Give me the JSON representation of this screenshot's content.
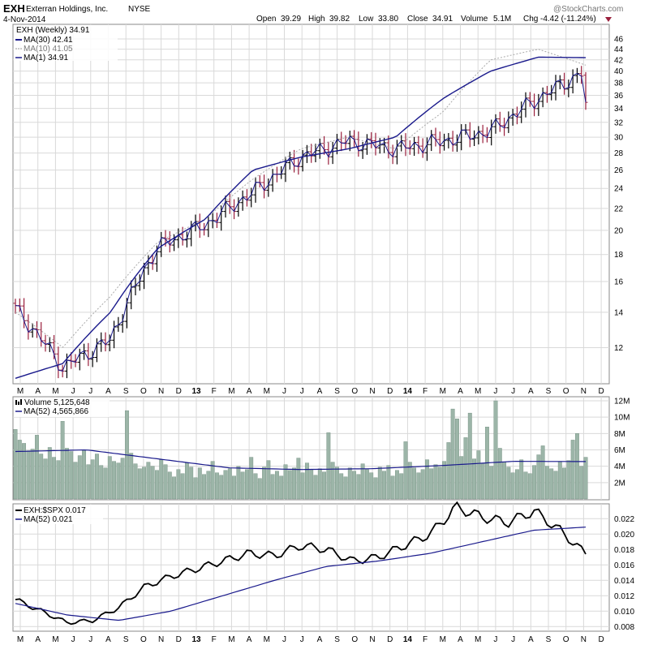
{
  "header": {
    "symbol": "EXH",
    "company": "Exterran Holdings, Inc.",
    "exchange": "NYSE",
    "date": "4-Nov-2014",
    "open_label": "Open",
    "open": "39.29",
    "high_label": "High",
    "high": "39.82",
    "low_label": "Low",
    "low": "33.80",
    "close_label": "Close",
    "close": "34.91",
    "volume_label": "Volume",
    "volume": "5.1M",
    "chg_label": "Chg",
    "chg": "-4.42 (-11.24%)",
    "watermark": "@StockCharts.com"
  },
  "colors": {
    "price_up": "#000000",
    "price_down": "#9a1f3c",
    "ma_line": "#1a1a8c",
    "ma10_line": "#aaaaaa",
    "volume_bar": "#9cb5a8",
    "grid": "#d9d9d9",
    "chg_arrow": "#9a1f3c"
  },
  "chart_data": [
    {
      "type": "ohlc",
      "panel": "price",
      "title": "EXH (Weekly) 34.91",
      "legend": [
        "MA(30) 42.41",
        "MA(10) 41.05",
        "MA(1) 34.91"
      ],
      "scale": "log",
      "ylim": [
        10.4,
        48
      ],
      "y_ticks": [
        12,
        14,
        16,
        18,
        20,
        22,
        24,
        26,
        28,
        30,
        32,
        34,
        36,
        38,
        40,
        42,
        44,
        46
      ],
      "x_anchor_weeks": [
        0,
        10,
        20,
        30,
        40,
        50,
        60,
        70,
        80,
        90,
        100,
        110,
        117
      ],
      "x_anchor_close": [
        14.2,
        11.0,
        12.4,
        18.6,
        20.5,
        23.6,
        27.5,
        29.5,
        28.5,
        29.5,
        30.8,
        35.5,
        40.0
      ],
      "ma30": [
        10.5,
        11.2,
        14.0,
        18.5,
        21.0,
        26.0,
        27.5,
        28.5,
        30.0,
        35.5,
        40.0,
        42.5,
        42.41
      ],
      "ma10": [
        14.0,
        12.0,
        15.0,
        19.0,
        21.0,
        25.0,
        28.5,
        30.0,
        28.5,
        33.5,
        42.0,
        44.0,
        41.05
      ],
      "last_week": {
        "open": 39.29,
        "high": 39.82,
        "low": 33.8,
        "close": 34.91
      }
    },
    {
      "type": "bar",
      "panel": "volume",
      "title": "Volume 5,125,648",
      "legend": [
        "MA(52) 4,565,866"
      ],
      "ylim": [
        0,
        12
      ],
      "y_ticks": [
        "2M",
        "4M",
        "6M",
        "8M",
        "10M",
        "12M"
      ],
      "y_tick_values": [
        2,
        4,
        6,
        8,
        10,
        12
      ],
      "values": [
        8.5,
        7.2,
        6.8,
        5.9,
        6.1,
        7.8,
        5.5,
        4.9,
        6.3,
        5.1,
        4.7,
        9.5,
        6.2,
        5.8,
        4.5,
        5.3,
        6.0,
        4.2,
        4.8,
        5.5,
        4.1,
        3.8,
        5.2,
        4.6,
        4.4,
        5.0,
        10.8,
        5.6,
        4.3,
        3.7,
        3.9,
        4.5,
        4.0,
        3.5,
        4.8,
        4.2,
        3.3,
        2.7,
        3.6,
        3.1,
        4.4,
        3.9,
        2.6,
        3.8,
        3.0,
        3.4,
        4.6,
        3.2,
        2.9,
        3.5,
        3.7,
        2.8,
        4.0,
        3.3,
        3.6,
        5.1,
        3.1,
        2.5,
        3.9,
        4.7,
        3.0,
        3.4,
        2.8,
        4.2,
        3.5,
        3.8,
        5.0,
        3.2,
        4.4,
        3.6,
        2.9,
        3.7,
        3.3,
        8.1,
        4.5,
        3.9,
        3.1,
        2.7,
        3.8,
        3.4,
        3.0,
        4.3,
        3.6,
        3.2,
        2.6,
        3.9,
        3.4,
        4.1,
        2.8,
        3.5,
        3.1,
        7.0,
        4.5,
        3.8,
        3.2,
        3.6,
        4.8,
        3.7,
        4.2,
        3.9,
        4.6,
        6.9,
        11.0,
        9.8,
        5.2,
        7.5,
        10.5,
        4.9,
        5.9,
        4.4,
        8.8,
        4.0,
        12.0,
        6.2,
        4.5,
        3.9,
        3.2,
        3.6,
        4.8,
        3.3,
        3.1,
        4.1,
        5.4,
        6.5,
        4.0,
        3.7,
        3.4,
        4.6,
        3.8,
        4.7,
        7.2,
        8.0,
        4.0,
        5.1
      ],
      "ma52_anchor": [
        5.8,
        6.0,
        4.9,
        3.8,
        3.6,
        3.7,
        4.1,
        4.6,
        4.57
      ]
    },
    {
      "type": "line",
      "panel": "relative",
      "title": "EXH:$SPX 0.017",
      "legend": [
        "MA(52) 0.021"
      ],
      "ylim": [
        0.0075,
        0.0235
      ],
      "y_ticks": [
        "0.008",
        "0.010",
        "0.012",
        "0.014",
        "0.016",
        "0.018",
        "0.020",
        "0.022"
      ],
      "y_tick_values": [
        0.008,
        0.01,
        0.012,
        0.014,
        0.016,
        0.018,
        0.02,
        0.022
      ],
      "ratio_anchor": [
        0.0115,
        0.01,
        0.0085,
        0.0088,
        0.0105,
        0.0132,
        0.0145,
        0.0155,
        0.0165,
        0.0175,
        0.0172,
        0.0185,
        0.018,
        0.0165,
        0.017,
        0.0185,
        0.02,
        0.0235,
        0.0222,
        0.0215,
        0.023,
        0.0205,
        0.0174
      ],
      "ma52_anchor": [
        0.011,
        0.0095,
        0.0088,
        0.01,
        0.012,
        0.014,
        0.0158,
        0.0165,
        0.0175,
        0.019,
        0.0205,
        0.0209
      ]
    }
  ],
  "x_axis": {
    "months": [
      "M",
      "A",
      "M",
      "J",
      "J",
      "A",
      "S",
      "O",
      "N",
      "D",
      "13",
      "F",
      "M",
      "A",
      "M",
      "J",
      "J",
      "A",
      "S",
      "O",
      "N",
      "D",
      "14",
      "F",
      "M",
      "A",
      "M",
      "J",
      "J",
      "A",
      "S",
      "O",
      "N",
      "D"
    ],
    "bold_labels": [
      "13",
      "14"
    ]
  }
}
